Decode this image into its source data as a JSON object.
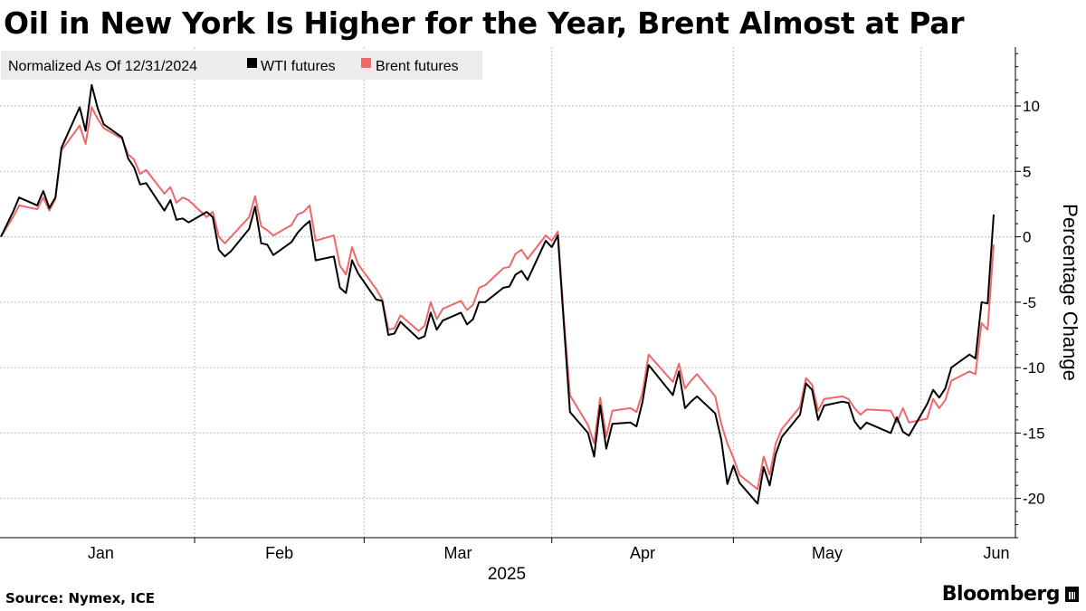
{
  "title": "Oil in New York Is Higher for the Year, Brent Almost at Par",
  "source": "Source: Nymex, ICE",
  "brand": "Bloomberg",
  "brand_icon": "bloomberg-terminal-icon",
  "chart_data": {
    "type": "line",
    "title": "Oil in New York Is Higher for the Year, Brent Almost at Par",
    "legend": {
      "placement": "top-left",
      "note": "Normalized As Of 12/31/2024",
      "items": [
        "WTI futures",
        "Brent futures"
      ]
    },
    "xlabel": "2025",
    "ylabel": "Percentage Change",
    "x_ticks": [
      "Jan",
      "Feb",
      "Mar",
      "Apr",
      "May",
      "Jun"
    ],
    "x_range": [
      "2024-12-31",
      "2025-06-13"
    ],
    "ylim": [
      -23,
      14.5
    ],
    "y_ticks": [
      10,
      5,
      0,
      -5,
      -10,
      -15,
      -20
    ],
    "y_axis_position": "right",
    "grid": true,
    "series": [
      {
        "name": "WTI futures",
        "color": "#000000",
        "points": [
          [
            "2024-12-31",
            0.0
          ],
          [
            "2025-01-02",
            1.9
          ],
          [
            "2025-01-03",
            3.0
          ],
          [
            "2025-01-06",
            2.4
          ],
          [
            "2025-01-07",
            3.5
          ],
          [
            "2025-01-08",
            2.2
          ],
          [
            "2025-01-09",
            3.0
          ],
          [
            "2025-01-10",
            6.8
          ],
          [
            "2025-01-13",
            9.9
          ],
          [
            "2025-01-14",
            8.1
          ],
          [
            "2025-01-15",
            11.6
          ],
          [
            "2025-01-16",
            9.8
          ],
          [
            "2025-01-17",
            8.6
          ],
          [
            "2025-01-20",
            7.6
          ],
          [
            "2025-01-21",
            6.0
          ],
          [
            "2025-01-22",
            5.3
          ],
          [
            "2025-01-23",
            4.0
          ],
          [
            "2025-01-24",
            4.1
          ],
          [
            "2025-01-27",
            2.0
          ],
          [
            "2025-01-28",
            2.8
          ],
          [
            "2025-01-29",
            1.3
          ],
          [
            "2025-01-30",
            1.4
          ],
          [
            "2025-01-31",
            1.1
          ],
          [
            "2025-02-03",
            1.9
          ],
          [
            "2025-02-04",
            1.5
          ],
          [
            "2025-02-05",
            -1.0
          ],
          [
            "2025-02-06",
            -1.5
          ],
          [
            "2025-02-07",
            -1.1
          ],
          [
            "2025-02-10",
            0.6
          ],
          [
            "2025-02-11",
            2.3
          ],
          [
            "2025-02-12",
            -0.5
          ],
          [
            "2025-02-13",
            -0.6
          ],
          [
            "2025-02-14",
            -1.4
          ],
          [
            "2025-02-17",
            -0.4
          ],
          [
            "2025-02-18",
            0.3
          ],
          [
            "2025-02-19",
            0.8
          ],
          [
            "2025-02-20",
            1.2
          ],
          [
            "2025-02-21",
            -1.8
          ],
          [
            "2025-02-24",
            -1.5
          ],
          [
            "2025-02-25",
            -3.9
          ],
          [
            "2025-02-26",
            -4.3
          ],
          [
            "2025-02-27",
            -1.8
          ],
          [
            "2025-02-28",
            -2.8
          ],
          [
            "2025-03-03",
            -4.8
          ],
          [
            "2025-03-04",
            -4.9
          ],
          [
            "2025-03-05",
            -7.5
          ],
          [
            "2025-03-06",
            -7.4
          ],
          [
            "2025-03-07",
            -6.5
          ],
          [
            "2025-03-10",
            -7.8
          ],
          [
            "2025-03-11",
            -7.6
          ],
          [
            "2025-03-12",
            -5.8
          ],
          [
            "2025-03-13",
            -7.1
          ],
          [
            "2025-03-14",
            -6.4
          ],
          [
            "2025-03-17",
            -5.8
          ],
          [
            "2025-03-18",
            -6.7
          ],
          [
            "2025-03-19",
            -6.3
          ],
          [
            "2025-03-20",
            -5.0
          ],
          [
            "2025-03-21",
            -5.0
          ],
          [
            "2025-03-24",
            -3.9
          ],
          [
            "2025-03-25",
            -3.8
          ],
          [
            "2025-03-26",
            -2.9
          ],
          [
            "2025-03-27",
            -2.6
          ],
          [
            "2025-03-28",
            -3.3
          ],
          [
            "2025-03-31",
            -0.3
          ],
          [
            "2025-04-01",
            -0.8
          ],
          [
            "2025-04-02",
            0.1
          ],
          [
            "2025-04-03",
            -6.7
          ],
          [
            "2025-04-04",
            -13.4
          ],
          [
            "2025-04-07",
            -15.0
          ],
          [
            "2025-04-08",
            -16.8
          ],
          [
            "2025-04-09",
            -12.9
          ],
          [
            "2025-04-10",
            -16.2
          ],
          [
            "2025-04-11",
            -14.3
          ],
          [
            "2025-04-14",
            -14.2
          ],
          [
            "2025-04-15",
            -14.5
          ],
          [
            "2025-04-16",
            -12.6
          ],
          [
            "2025-04-17",
            -9.8
          ],
          [
            "2025-04-21",
            -12.1
          ],
          [
            "2025-04-22",
            -10.3
          ],
          [
            "2025-04-23",
            -13.1
          ],
          [
            "2025-04-24",
            -12.6
          ],
          [
            "2025-04-25",
            -12.2
          ],
          [
            "2025-04-28",
            -13.5
          ],
          [
            "2025-04-29",
            -15.5
          ],
          [
            "2025-04-30",
            -18.9
          ],
          [
            "2025-05-01",
            -17.5
          ],
          [
            "2025-05-02",
            -18.8
          ],
          [
            "2025-05-05",
            -20.4
          ],
          [
            "2025-05-06",
            -17.6
          ],
          [
            "2025-05-07",
            -19.0
          ],
          [
            "2025-05-08",
            -16.6
          ],
          [
            "2025-05-09",
            -15.3
          ],
          [
            "2025-05-12",
            -13.6
          ],
          [
            "2025-05-13",
            -11.2
          ],
          [
            "2025-05-14",
            -11.7
          ],
          [
            "2025-05-15",
            -14.0
          ],
          [
            "2025-05-16",
            -12.9
          ],
          [
            "2025-05-19",
            -12.6
          ],
          [
            "2025-05-20",
            -12.7
          ],
          [
            "2025-05-21",
            -14.1
          ],
          [
            "2025-05-22",
            -14.7
          ],
          [
            "2025-05-23",
            -14.2
          ],
          [
            "2025-05-27",
            -15.0
          ],
          [
            "2025-05-28",
            -13.8
          ],
          [
            "2025-05-29",
            -14.9
          ],
          [
            "2025-05-30",
            -15.2
          ],
          [
            "2025-06-02",
            -12.8
          ],
          [
            "2025-06-03",
            -11.7
          ],
          [
            "2025-06-04",
            -12.3
          ],
          [
            "2025-06-05",
            -11.6
          ],
          [
            "2025-06-06",
            -10.0
          ],
          [
            "2025-06-09",
            -9.0
          ],
          [
            "2025-06-10",
            -9.3
          ],
          [
            "2025-06-11",
            -5.0
          ],
          [
            "2025-06-12",
            -5.1
          ],
          [
            "2025-06-13",
            1.7
          ]
        ]
      },
      {
        "name": "Brent futures",
        "color": "#f0676a",
        "points": [
          [
            "2024-12-31",
            0.0
          ],
          [
            "2025-01-02",
            1.5
          ],
          [
            "2025-01-03",
            2.4
          ],
          [
            "2025-01-06",
            2.1
          ],
          [
            "2025-01-07",
            3.0
          ],
          [
            "2025-01-08",
            2.0
          ],
          [
            "2025-01-09",
            2.9
          ],
          [
            "2025-01-10",
            6.6
          ],
          [
            "2025-01-13",
            8.5
          ],
          [
            "2025-01-14",
            7.1
          ],
          [
            "2025-01-15",
            9.9
          ],
          [
            "2025-01-16",
            9.0
          ],
          [
            "2025-01-17",
            8.3
          ],
          [
            "2025-01-20",
            7.5
          ],
          [
            "2025-01-21",
            6.3
          ],
          [
            "2025-01-22",
            5.9
          ],
          [
            "2025-01-23",
            4.8
          ],
          [
            "2025-01-24",
            5.1
          ],
          [
            "2025-01-27",
            3.3
          ],
          [
            "2025-01-28",
            3.8
          ],
          [
            "2025-01-29",
            2.6
          ],
          [
            "2025-01-30",
            3.0
          ],
          [
            "2025-01-31",
            2.8
          ],
          [
            "2025-02-03",
            1.5
          ],
          [
            "2025-02-04",
            1.9
          ],
          [
            "2025-02-05",
            0.0
          ],
          [
            "2025-02-06",
            -0.5
          ],
          [
            "2025-02-07",
            0.0
          ],
          [
            "2025-02-10",
            1.5
          ],
          [
            "2025-02-11",
            3.1
          ],
          [
            "2025-02-12",
            0.8
          ],
          [
            "2025-02-13",
            0.5
          ],
          [
            "2025-02-14",
            0.1
          ],
          [
            "2025-02-17",
            0.9
          ],
          [
            "2025-02-18",
            1.7
          ],
          [
            "2025-02-19",
            1.9
          ],
          [
            "2025-02-20",
            2.4
          ],
          [
            "2025-02-21",
            -0.3
          ],
          [
            "2025-02-24",
            0.1
          ],
          [
            "2025-02-25",
            -2.2
          ],
          [
            "2025-02-26",
            -2.9
          ],
          [
            "2025-02-27",
            -0.8
          ],
          [
            "2025-02-28",
            -2.1
          ],
          [
            "2025-03-03",
            -4.0
          ],
          [
            "2025-03-04",
            -4.8
          ],
          [
            "2025-03-05",
            -7.1
          ],
          [
            "2025-03-06",
            -7.0
          ],
          [
            "2025-03-07",
            -6.0
          ],
          [
            "2025-03-10",
            -7.2
          ],
          [
            "2025-03-11",
            -6.8
          ],
          [
            "2025-03-12",
            -5.0
          ],
          [
            "2025-03-13",
            -6.3
          ],
          [
            "2025-03-14",
            -5.5
          ],
          [
            "2025-03-17",
            -4.9
          ],
          [
            "2025-03-18",
            -5.6
          ],
          [
            "2025-03-19",
            -5.2
          ],
          [
            "2025-03-20",
            -3.9
          ],
          [
            "2025-03-21",
            -3.7
          ],
          [
            "2025-03-24",
            -2.4
          ],
          [
            "2025-03-25",
            -2.3
          ],
          [
            "2025-03-26",
            -1.3
          ],
          [
            "2025-03-27",
            -1.0
          ],
          [
            "2025-03-28",
            -1.7
          ],
          [
            "2025-03-31",
            0.1
          ],
          [
            "2025-04-01",
            -0.3
          ],
          [
            "2025-04-02",
            0.4
          ],
          [
            "2025-04-03",
            -6.3
          ],
          [
            "2025-04-04",
            -12.1
          ],
          [
            "2025-04-07",
            -14.4
          ],
          [
            "2025-04-08",
            -15.8
          ],
          [
            "2025-04-09",
            -12.3
          ],
          [
            "2025-04-10",
            -15.3
          ],
          [
            "2025-04-11",
            -13.3
          ],
          [
            "2025-04-14",
            -13.1
          ],
          [
            "2025-04-15",
            -13.4
          ],
          [
            "2025-04-16",
            -11.9
          ],
          [
            "2025-04-17",
            -9.0
          ],
          [
            "2025-04-21",
            -11.1
          ],
          [
            "2025-04-22",
            -9.7
          ],
          [
            "2025-04-23",
            -11.6
          ],
          [
            "2025-04-24",
            -11.0
          ],
          [
            "2025-04-25",
            -10.5
          ],
          [
            "2025-04-28",
            -12.2
          ],
          [
            "2025-04-29",
            -14.3
          ],
          [
            "2025-04-30",
            -15.8
          ],
          [
            "2025-05-01",
            -16.9
          ],
          [
            "2025-05-02",
            -18.2
          ],
          [
            "2025-05-05",
            -19.3
          ],
          [
            "2025-05-06",
            -16.8
          ],
          [
            "2025-05-07",
            -18.2
          ],
          [
            "2025-05-08",
            -15.8
          ],
          [
            "2025-05-09",
            -14.7
          ],
          [
            "2025-05-12",
            -13.0
          ],
          [
            "2025-05-13",
            -10.8
          ],
          [
            "2025-05-14",
            -11.3
          ],
          [
            "2025-05-15",
            -13.3
          ],
          [
            "2025-05-16",
            -12.4
          ],
          [
            "2025-05-19",
            -12.2
          ],
          [
            "2025-05-20",
            -12.4
          ],
          [
            "2025-05-21",
            -13.1
          ],
          [
            "2025-05-22",
            -13.6
          ],
          [
            "2025-05-23",
            -13.2
          ],
          [
            "2025-05-27",
            -13.3
          ],
          [
            "2025-05-28",
            -14.2
          ],
          [
            "2025-05-29",
            -13.1
          ],
          [
            "2025-05-30",
            -14.2
          ],
          [
            "2025-06-02",
            -13.9
          ],
          [
            "2025-06-03",
            -12.4
          ],
          [
            "2025-06-04",
            -13.1
          ],
          [
            "2025-06-05",
            -12.5
          ],
          [
            "2025-06-06",
            -11.0
          ],
          [
            "2025-06-09",
            -10.3
          ],
          [
            "2025-06-10",
            -10.5
          ],
          [
            "2025-06-11",
            -6.6
          ],
          [
            "2025-06-12",
            -7.1
          ],
          [
            "2025-06-13",
            -0.6
          ]
        ]
      }
    ]
  }
}
